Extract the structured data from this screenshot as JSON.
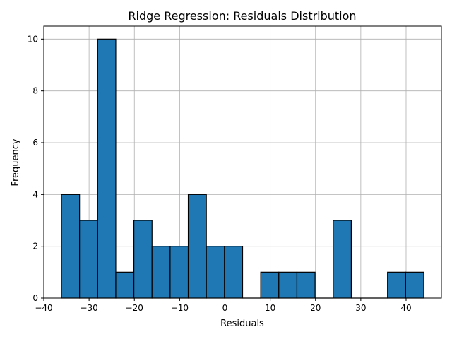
{
  "chart_data": {
    "type": "histogram",
    "title": "Ridge Regression: Residuals Distribution",
    "xlabel": "Residuals",
    "ylabel": "Frequency",
    "xlim": [
      -40,
      47.8
    ],
    "ylim": [
      0,
      10.5
    ],
    "xticks": [
      -40,
      -30,
      -20,
      -10,
      0,
      10,
      20,
      30,
      40
    ],
    "yticks": [
      0,
      2,
      4,
      6,
      8,
      10
    ],
    "grid": true,
    "bar_color": "#1f77b4",
    "edge_color": "#000000",
    "bins": [
      {
        "x0": -36.1,
        "x1": -32.1,
        "count": 4
      },
      {
        "x0": -32.1,
        "x1": -28.1,
        "count": 3
      },
      {
        "x0": -28.1,
        "x1": -24.1,
        "count": 10
      },
      {
        "x0": -24.1,
        "x1": -20.1,
        "count": 1
      },
      {
        "x0": -20.1,
        "x1": -16.1,
        "count": 3
      },
      {
        "x0": -16.1,
        "x1": -12.1,
        "count": 2
      },
      {
        "x0": -12.1,
        "x1": -8.1,
        "count": 2
      },
      {
        "x0": -8.1,
        "x1": -4.1,
        "count": 4
      },
      {
        "x0": -4.1,
        "x1": -0.1,
        "count": 2
      },
      {
        "x0": -0.1,
        "x1": 3.9,
        "count": 2
      },
      {
        "x0": 3.9,
        "x1": 7.9,
        "count": 0
      },
      {
        "x0": 7.9,
        "x1": 11.9,
        "count": 1
      },
      {
        "x0": 11.9,
        "x1": 15.9,
        "count": 1
      },
      {
        "x0": 15.9,
        "x1": 19.9,
        "count": 1
      },
      {
        "x0": 19.9,
        "x1": 23.9,
        "count": 0
      },
      {
        "x0": 23.9,
        "x1": 27.9,
        "count": 3
      },
      {
        "x0": 27.9,
        "x1": 31.9,
        "count": 0
      },
      {
        "x0": 31.9,
        "x1": 35.9,
        "count": 0
      },
      {
        "x0": 35.9,
        "x1": 39.9,
        "count": 1
      },
      {
        "x0": 39.9,
        "x1": 43.9,
        "count": 1
      }
    ]
  }
}
